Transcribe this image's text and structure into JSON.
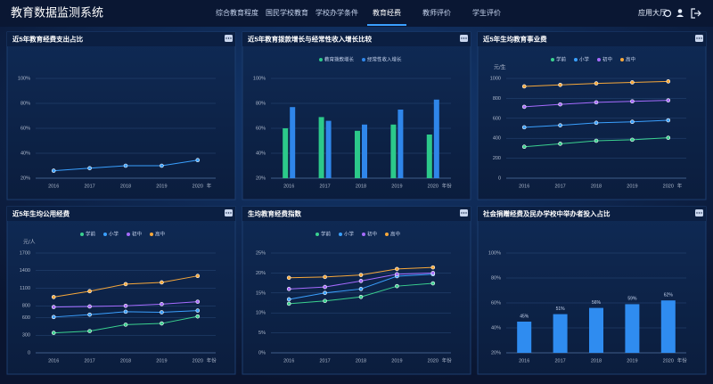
{
  "header": {
    "title": "教育数据监测系统",
    "nav": [
      "综合教育程度",
      "国民学校教育",
      "学校办学条件",
      "教育经费",
      "教师评价",
      "学生评价"
    ],
    "active_nav": 3,
    "app_hall": "应用大厅"
  },
  "chart_data": [
    {
      "type": "line",
      "title": "近5年教育经费支出占比",
      "categories": [
        "2016",
        "2017",
        "2018",
        "2019",
        "2020"
      ],
      "x_unit": "年",
      "series": [
        {
          "name": null,
          "color": "#3aa0ff",
          "values": [
            26,
            28,
            30,
            30,
            34.5
          ]
        }
      ],
      "ylim": [
        20,
        100
      ],
      "yticks": [
        {
          "value": 20,
          "label": "20%"
        },
        {
          "value": 40,
          "label": "40%"
        },
        {
          "value": 60,
          "label": "60%"
        },
        {
          "value": 80,
          "label": "80%"
        },
        {
          "value": 100,
          "label": "100%"
        }
      ],
      "grid": true
    },
    {
      "type": "grouped_bar",
      "title": "近5年教育拨款增长与经常性收入增长比较",
      "categories": [
        "2016",
        "2017",
        "2018",
        "2019",
        "2020"
      ],
      "x_unit": "年份",
      "series": [
        {
          "name": "教育拨款增长",
          "color": "#2cc98a",
          "values": [
            60,
            69,
            58,
            63,
            55
          ]
        },
        {
          "name": "经常性收入增长",
          "color": "#2f86ea",
          "values": [
            77,
            66,
            63,
            75,
            83
          ]
        }
      ],
      "ylim": [
        20,
        100
      ],
      "yticks": [
        {
          "value": 20,
          "label": "20%"
        },
        {
          "value": 40,
          "label": "40%"
        },
        {
          "value": 60,
          "label": "60%"
        },
        {
          "value": 80,
          "label": "80%"
        },
        {
          "value": 100,
          "label": "100%"
        }
      ],
      "grid": true
    },
    {
      "type": "line",
      "title": "近5年生均教育事业费",
      "y_unit": "元/生",
      "categories": [
        "2016",
        "2017",
        "2018",
        "2019",
        "2020"
      ],
      "x_unit": "年",
      "series": [
        {
          "name": "学前",
          "color": "#3ad18f",
          "values": [
            315,
            345,
            375,
            385,
            405
          ]
        },
        {
          "name": "小学",
          "color": "#3aa0ff",
          "values": [
            510,
            530,
            555,
            565,
            580
          ]
        },
        {
          "name": "初中",
          "color": "#a66bff",
          "values": [
            715,
            740,
            760,
            770,
            780
          ]
        },
        {
          "name": "高中",
          "color": "#f7a83a",
          "values": [
            920,
            935,
            950,
            960,
            970
          ]
        }
      ],
      "ylim": [
        0,
        1000
      ],
      "yticks": [
        0,
        200,
        400,
        600,
        800,
        1000
      ],
      "grid": true
    },
    {
      "type": "line",
      "title": "近5年生均公用经费",
      "y_unit": "元/人",
      "categories": [
        "2016",
        "2017",
        "2018",
        "2019",
        "2020"
      ],
      "x_unit": "年份",
      "series": [
        {
          "name": "学前",
          "color": "#3ad18f",
          "values": [
            340,
            370,
            480,
            500,
            620
          ]
        },
        {
          "name": "小学",
          "color": "#3aa0ff",
          "values": [
            610,
            650,
            700,
            690,
            720
          ]
        },
        {
          "name": "初中",
          "color": "#a66bff",
          "values": [
            780,
            790,
            800,
            830,
            870
          ]
        },
        {
          "name": "高中",
          "color": "#f7a83a",
          "values": [
            950,
            1050,
            1170,
            1200,
            1310
          ]
        }
      ],
      "ylim": [
        0,
        1700
      ],
      "yticks": [
        0,
        300,
        600,
        800,
        1100,
        1400,
        1700
      ],
      "grid": true
    },
    {
      "type": "line",
      "title": "生均教育经费指数",
      "categories": [
        "2016",
        "2017",
        "2018",
        "2019",
        "2020"
      ],
      "x_unit": "年份",
      "series": [
        {
          "name": "学前",
          "color": "#3ad18f",
          "values": [
            12.3,
            13,
            14,
            16.7,
            17.4
          ]
        },
        {
          "name": "小学",
          "color": "#3aa0ff",
          "values": [
            13.4,
            15,
            16,
            19.2,
            19.7
          ]
        },
        {
          "name": "初中",
          "color": "#a66bff",
          "values": [
            16,
            16.5,
            18,
            19.7,
            20
          ]
        },
        {
          "name": "高中",
          "color": "#f7a83a",
          "values": [
            18.8,
            19,
            19.5,
            21,
            21.4
          ]
        }
      ],
      "ylim": [
        0,
        25
      ],
      "yticks": [
        {
          "value": 0,
          "label": "0%"
        },
        {
          "value": 5,
          "label": "5%"
        },
        {
          "value": 10,
          "label": "10%"
        },
        {
          "value": 15,
          "label": "15%"
        },
        {
          "value": 20,
          "label": "20%"
        },
        {
          "value": 25,
          "label": "25%"
        }
      ],
      "grid": true
    },
    {
      "type": "bar",
      "title": "社会捐赠经费及民办学校中举办者投入占比",
      "categories": [
        "2016",
        "2017",
        "2018",
        "2019",
        "2020"
      ],
      "x_unit": "年份",
      "series": [
        {
          "name": null,
          "color": "#2f8cf0",
          "values": [
            45,
            51,
            56,
            59,
            62
          ],
          "value_labels": [
            "45%",
            "51%",
            "56%",
            "59%",
            "62%"
          ]
        }
      ],
      "ylim": [
        20,
        100
      ],
      "yticks": [
        {
          "value": 20,
          "label": "20%"
        },
        {
          "value": 40,
          "label": "40%"
        },
        {
          "value": 60,
          "label": "60%"
        },
        {
          "value": 80,
          "label": "80%"
        },
        {
          "value": 100,
          "label": "100%"
        }
      ],
      "grid": true
    }
  ]
}
